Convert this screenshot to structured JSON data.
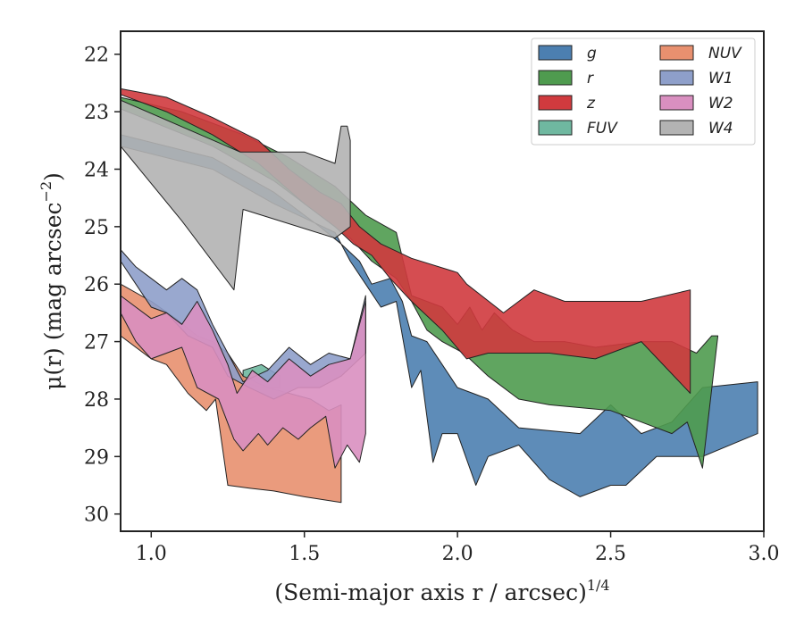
{
  "chart_data": {
    "type": "area",
    "xlabel": "(Semi-major axis r / arcsec)",
    "xlabel_sup": "1/4",
    "ylabel": "μ(r) (mag arcsec",
    "ylabel_sup": "−2",
    "ylabel_end": ")",
    "xlim": [
      0.9,
      3.0
    ],
    "ylim": [
      30.3,
      21.6
    ],
    "y_inverted": true,
    "xticks": [
      "1.0",
      "1.5",
      "2.0",
      "2.5",
      "3.0"
    ],
    "yticks": [
      "22",
      "23",
      "24",
      "25",
      "26",
      "27",
      "28",
      "29",
      "30"
    ],
    "legend_position": "top-right",
    "legend_columns": 2,
    "series": [
      {
        "name": "g",
        "color": "#4c7fb0",
        "upper": [
          [
            0.9,
            23.4
          ],
          [
            1.2,
            23.8
          ],
          [
            1.4,
            24.4
          ],
          [
            1.55,
            25.0
          ],
          [
            1.62,
            25.3
          ],
          [
            1.68,
            25.6
          ],
          [
            1.72,
            26.0
          ],
          [
            1.78,
            25.9
          ],
          [
            1.82,
            26.3
          ],
          [
            1.85,
            26.9
          ],
          [
            1.9,
            27.0
          ],
          [
            1.95,
            27.4
          ],
          [
            2.0,
            27.8
          ],
          [
            2.05,
            27.9
          ],
          [
            2.1,
            28.0
          ],
          [
            2.2,
            28.5
          ],
          [
            2.4,
            28.6
          ],
          [
            2.5,
            28.1
          ],
          [
            2.6,
            28.6
          ],
          [
            2.7,
            28.4
          ],
          [
            2.8,
            27.8
          ],
          [
            2.98,
            27.7
          ]
        ],
        "lower": [
          [
            2.98,
            28.6
          ],
          [
            2.8,
            29.0
          ],
          [
            2.65,
            29.0
          ],
          [
            2.55,
            29.5
          ],
          [
            2.5,
            29.5
          ],
          [
            2.4,
            29.7
          ],
          [
            2.3,
            29.4
          ],
          [
            2.2,
            28.8
          ],
          [
            2.1,
            29.0
          ],
          [
            2.06,
            29.5
          ],
          [
            2.0,
            28.6
          ],
          [
            1.95,
            28.6
          ],
          [
            1.92,
            29.1
          ],
          [
            1.88,
            27.5
          ],
          [
            1.85,
            27.8
          ],
          [
            1.8,
            26.3
          ],
          [
            1.75,
            26.4
          ],
          [
            1.7,
            26.0
          ],
          [
            1.65,
            25.6
          ],
          [
            1.6,
            25.1
          ],
          [
            1.4,
            24.6
          ],
          [
            1.2,
            24.0
          ],
          [
            0.9,
            23.6
          ]
        ]
      },
      {
        "name": "r",
        "color": "#4f9b4f",
        "upper": [
          [
            0.9,
            22.75
          ],
          [
            1.1,
            23.0
          ],
          [
            1.3,
            23.4
          ],
          [
            1.45,
            23.8
          ],
          [
            1.6,
            24.3
          ],
          [
            1.7,
            24.8
          ],
          [
            1.8,
            25.1
          ],
          [
            1.85,
            26.2
          ],
          [
            1.95,
            26.4
          ],
          [
            2.0,
            26.7
          ],
          [
            2.04,
            26.4
          ],
          [
            2.08,
            26.8
          ],
          [
            2.12,
            26.5
          ],
          [
            2.18,
            26.8
          ],
          [
            2.25,
            27.0
          ],
          [
            2.35,
            27.0
          ],
          [
            2.45,
            27.1
          ],
          [
            2.6,
            27.0
          ],
          [
            2.7,
            27.0
          ],
          [
            2.78,
            27.2
          ],
          [
            2.83,
            26.9
          ],
          [
            2.85,
            26.9
          ]
        ],
        "lower": [
          [
            2.85,
            26.9
          ],
          [
            2.8,
            29.2
          ],
          [
            2.75,
            28.4
          ],
          [
            2.7,
            28.6
          ],
          [
            2.6,
            28.4
          ],
          [
            2.5,
            28.2
          ],
          [
            2.3,
            28.1
          ],
          [
            2.2,
            28.0
          ],
          [
            2.1,
            27.6
          ],
          [
            2.02,
            27.2
          ],
          [
            1.95,
            27.0
          ],
          [
            1.9,
            26.8
          ],
          [
            1.85,
            26.3
          ],
          [
            1.8,
            25.9
          ],
          [
            1.72,
            25.6
          ],
          [
            1.65,
            25.2
          ],
          [
            1.55,
            24.8
          ],
          [
            1.4,
            24.2
          ],
          [
            1.2,
            23.6
          ],
          [
            0.9,
            22.95
          ]
        ]
      },
      {
        "name": "z",
        "color": "#d03a3e",
        "upper": [
          [
            0.9,
            22.6
          ],
          [
            1.05,
            22.75
          ],
          [
            1.2,
            23.1
          ],
          [
            1.35,
            23.5
          ],
          [
            1.45,
            24.0
          ],
          [
            1.55,
            24.4
          ],
          [
            1.62,
            24.6
          ],
          [
            1.68,
            25.0
          ],
          [
            1.75,
            25.3
          ],
          [
            1.85,
            25.55
          ],
          [
            2.0,
            25.8
          ],
          [
            2.03,
            26.0
          ],
          [
            2.15,
            26.5
          ],
          [
            2.25,
            26.1
          ],
          [
            2.35,
            26.3
          ],
          [
            2.45,
            26.3
          ],
          [
            2.6,
            26.3
          ],
          [
            2.76,
            26.1
          ]
        ],
        "lower": [
          [
            2.76,
            27.9
          ],
          [
            2.6,
            27.0
          ],
          [
            2.45,
            27.3
          ],
          [
            2.3,
            27.2
          ],
          [
            2.2,
            27.2
          ],
          [
            2.1,
            27.2
          ],
          [
            2.03,
            27.3
          ],
          [
            1.95,
            26.8
          ],
          [
            1.85,
            26.3
          ],
          [
            1.78,
            25.9
          ],
          [
            1.72,
            25.5
          ],
          [
            1.66,
            25.3
          ],
          [
            1.6,
            25.0
          ],
          [
            1.5,
            24.6
          ],
          [
            1.35,
            23.9
          ],
          [
            1.2,
            23.4
          ],
          [
            1.05,
            23.0
          ],
          [
            0.9,
            22.7
          ]
        ]
      },
      {
        "name": "FUV",
        "color": "#6fb8a0",
        "upper": [
          [
            1.3,
            27.5
          ],
          [
            1.36,
            27.4
          ],
          [
            1.42,
            27.6
          ]
        ],
        "lower": [
          [
            1.42,
            27.8
          ],
          [
            1.36,
            27.8
          ],
          [
            1.3,
            27.7
          ]
        ]
      },
      {
        "name": "NUV",
        "color": "#e8906f",
        "upper": [
          [
            0.9,
            26.0
          ],
          [
            1.0,
            26.3
          ],
          [
            1.08,
            26.6
          ],
          [
            1.15,
            26.9
          ],
          [
            1.2,
            27.0
          ],
          [
            1.25,
            27.2
          ],
          [
            1.3,
            27.6
          ],
          [
            1.38,
            27.8
          ],
          [
            1.45,
            27.9
          ],
          [
            1.52,
            28.0
          ],
          [
            1.58,
            28.2
          ],
          [
            1.62,
            28.1
          ]
        ],
        "lower": [
          [
            1.62,
            29.8
          ],
          [
            1.5,
            29.7
          ],
          [
            1.4,
            29.6
          ],
          [
            1.32,
            29.55
          ],
          [
            1.25,
            29.5
          ],
          [
            1.21,
            28.0
          ],
          [
            1.18,
            28.2
          ],
          [
            1.12,
            27.9
          ],
          [
            1.05,
            27.4
          ],
          [
            1.0,
            27.3
          ],
          [
            0.95,
            27.1
          ],
          [
            0.9,
            26.9
          ]
        ]
      },
      {
        "name": "W1",
        "color": "#8e9fca",
        "upper": [
          [
            0.9,
            25.4
          ],
          [
            0.95,
            25.7
          ],
          [
            1.0,
            25.9
          ],
          [
            1.05,
            26.1
          ],
          [
            1.1,
            25.9
          ],
          [
            1.15,
            26.1
          ],
          [
            1.2,
            26.7
          ],
          [
            1.25,
            27.2
          ],
          [
            1.3,
            27.7
          ],
          [
            1.38,
            27.5
          ],
          [
            1.45,
            27.1
          ],
          [
            1.52,
            27.4
          ],
          [
            1.58,
            27.2
          ],
          [
            1.65,
            27.3
          ],
          [
            1.7,
            26.2
          ]
        ],
        "lower": [
          [
            1.7,
            27.2
          ],
          [
            1.62,
            27.6
          ],
          [
            1.55,
            27.8
          ],
          [
            1.48,
            27.8
          ],
          [
            1.4,
            28.0
          ],
          [
            1.32,
            27.8
          ],
          [
            1.25,
            27.6
          ],
          [
            1.2,
            27.1
          ],
          [
            1.12,
            26.9
          ],
          [
            1.05,
            26.5
          ],
          [
            1.0,
            26.4
          ],
          [
            0.95,
            26.0
          ],
          [
            0.9,
            25.6
          ]
        ]
      },
      {
        "name": "W2",
        "color": "#d98fc0",
        "upper": [
          [
            0.9,
            26.2
          ],
          [
            0.95,
            26.4
          ],
          [
            1.0,
            26.6
          ],
          [
            1.05,
            26.5
          ],
          [
            1.1,
            26.7
          ],
          [
            1.15,
            26.3
          ],
          [
            1.2,
            26.8
          ],
          [
            1.25,
            27.4
          ],
          [
            1.28,
            27.9
          ],
          [
            1.33,
            27.5
          ],
          [
            1.38,
            27.7
          ],
          [
            1.45,
            27.3
          ],
          [
            1.52,
            27.6
          ],
          [
            1.58,
            27.4
          ],
          [
            1.65,
            27.3
          ],
          [
            1.7,
            26.3
          ]
        ],
        "lower": [
          [
            1.7,
            28.6
          ],
          [
            1.68,
            29.1
          ],
          [
            1.64,
            28.8
          ],
          [
            1.6,
            29.2
          ],
          [
            1.57,
            28.3
          ],
          [
            1.52,
            28.5
          ],
          [
            1.48,
            28.7
          ],
          [
            1.43,
            28.5
          ],
          [
            1.38,
            28.8
          ],
          [
            1.35,
            28.6
          ],
          [
            1.3,
            28.9
          ],
          [
            1.27,
            28.7
          ],
          [
            1.22,
            28.0
          ],
          [
            1.15,
            27.8
          ],
          [
            1.1,
            27.1
          ],
          [
            1.05,
            27.2
          ],
          [
            1.0,
            27.3
          ],
          [
            0.95,
            27.0
          ],
          [
            0.9,
            26.5
          ]
        ]
      },
      {
        "name": "W4",
        "color": "#b3b3b3",
        "upper": [
          [
            0.9,
            22.8
          ],
          [
            1.29,
            23.7
          ],
          [
            1.5,
            23.7
          ],
          [
            1.6,
            23.9
          ],
          [
            1.62,
            23.25
          ],
          [
            1.64,
            23.25
          ],
          [
            1.65,
            23.5
          ]
        ],
        "lower": [
          [
            1.65,
            25.0
          ],
          [
            1.6,
            25.2
          ],
          [
            1.3,
            24.7
          ],
          [
            1.27,
            26.1
          ],
          [
            1.1,
            24.9
          ],
          [
            0.9,
            23.6
          ]
        ]
      }
    ]
  }
}
